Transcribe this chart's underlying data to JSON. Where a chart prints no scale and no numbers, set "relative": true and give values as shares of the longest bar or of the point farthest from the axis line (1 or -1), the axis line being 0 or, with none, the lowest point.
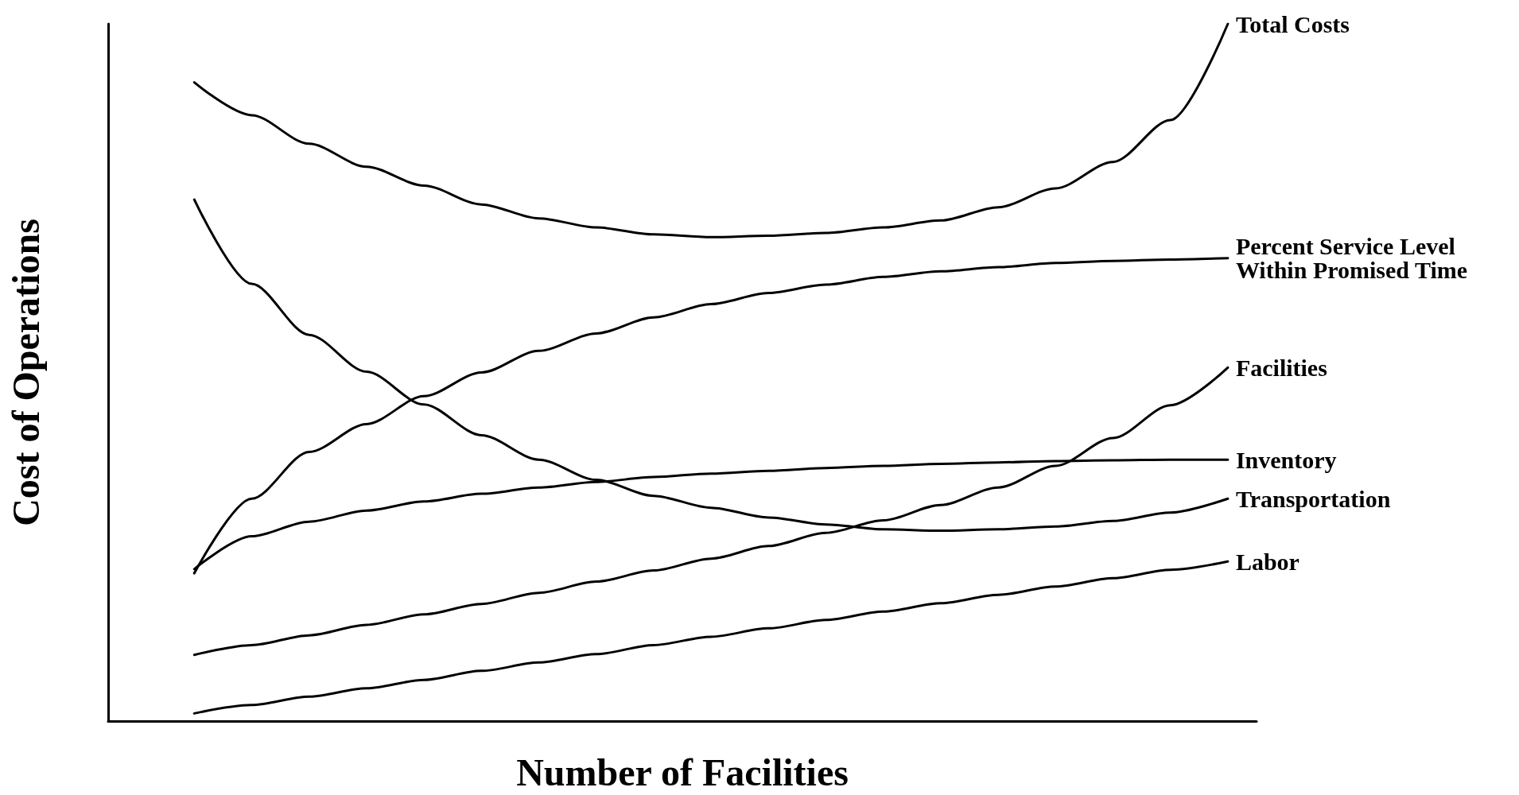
{
  "chart_data": {
    "type": "line",
    "relative": true,
    "xlabel": "Number of Facilities",
    "ylabel": "Cost of Operations",
    "legend": false,
    "grid": false,
    "marker": "none",
    "line_style": "solid",
    "categories": [
      null,
      null,
      null,
      null,
      null,
      null,
      null,
      null,
      null,
      null,
      null,
      null,
      null,
      null,
      null,
      null,
      null,
      null,
      null,
      null
    ],
    "series": [
      {
        "name": "Total Costs",
        "color": "#000000",
        "values": [
          null,
          0.916,
          0.869,
          0.828,
          0.795,
          0.768,
          0.741,
          0.721,
          0.708,
          0.698,
          0.694,
          0.696,
          0.7,
          0.708,
          0.718,
          0.737,
          0.764,
          0.802,
          0.862,
          1.0
        ]
      },
      {
        "name": "Percent Service Level Within Promised Time",
        "color": "#000000",
        "values": [
          null,
          0.212,
          0.319,
          0.386,
          0.426,
          0.466,
          0.5,
          0.531,
          0.556,
          0.579,
          0.598,
          0.614,
          0.626,
          0.637,
          0.645,
          0.651,
          0.657,
          0.66,
          0.662,
          0.664
        ]
      },
      {
        "name": "Facilities",
        "color": "#000000",
        "values": [
          null,
          0.095,
          0.109,
          0.123,
          0.138,
          0.153,
          0.168,
          0.184,
          0.2,
          0.216,
          0.233,
          0.251,
          0.27,
          0.288,
          0.31,
          0.335,
          0.366,
          0.406,
          0.453,
          0.507
        ]
      },
      {
        "name": "Inventory",
        "color": "#000000",
        "values": [
          null,
          0.218,
          0.265,
          0.286,
          0.302,
          0.315,
          0.326,
          0.335,
          0.343,
          0.35,
          0.355,
          0.359,
          0.363,
          0.366,
          0.369,
          0.371,
          0.373,
          0.374,
          0.375,
          0.375
        ]
      },
      {
        "name": "Transportation",
        "color": "#000000",
        "values": [
          null,
          0.748,
          0.627,
          0.554,
          0.501,
          0.454,
          0.41,
          0.375,
          0.346,
          0.323,
          0.306,
          0.292,
          0.282,
          0.275,
          0.273,
          0.275,
          0.279,
          0.287,
          0.299,
          0.319
        ]
      },
      {
        "name": "Labor",
        "color": "#000000",
        "values": [
          null,
          0.011,
          0.023,
          0.035,
          0.047,
          0.059,
          0.072,
          0.084,
          0.096,
          0.109,
          0.121,
          0.133,
          0.145,
          0.157,
          0.169,
          0.181,
          0.193,
          0.205,
          0.217,
          0.229
        ]
      }
    ]
  }
}
